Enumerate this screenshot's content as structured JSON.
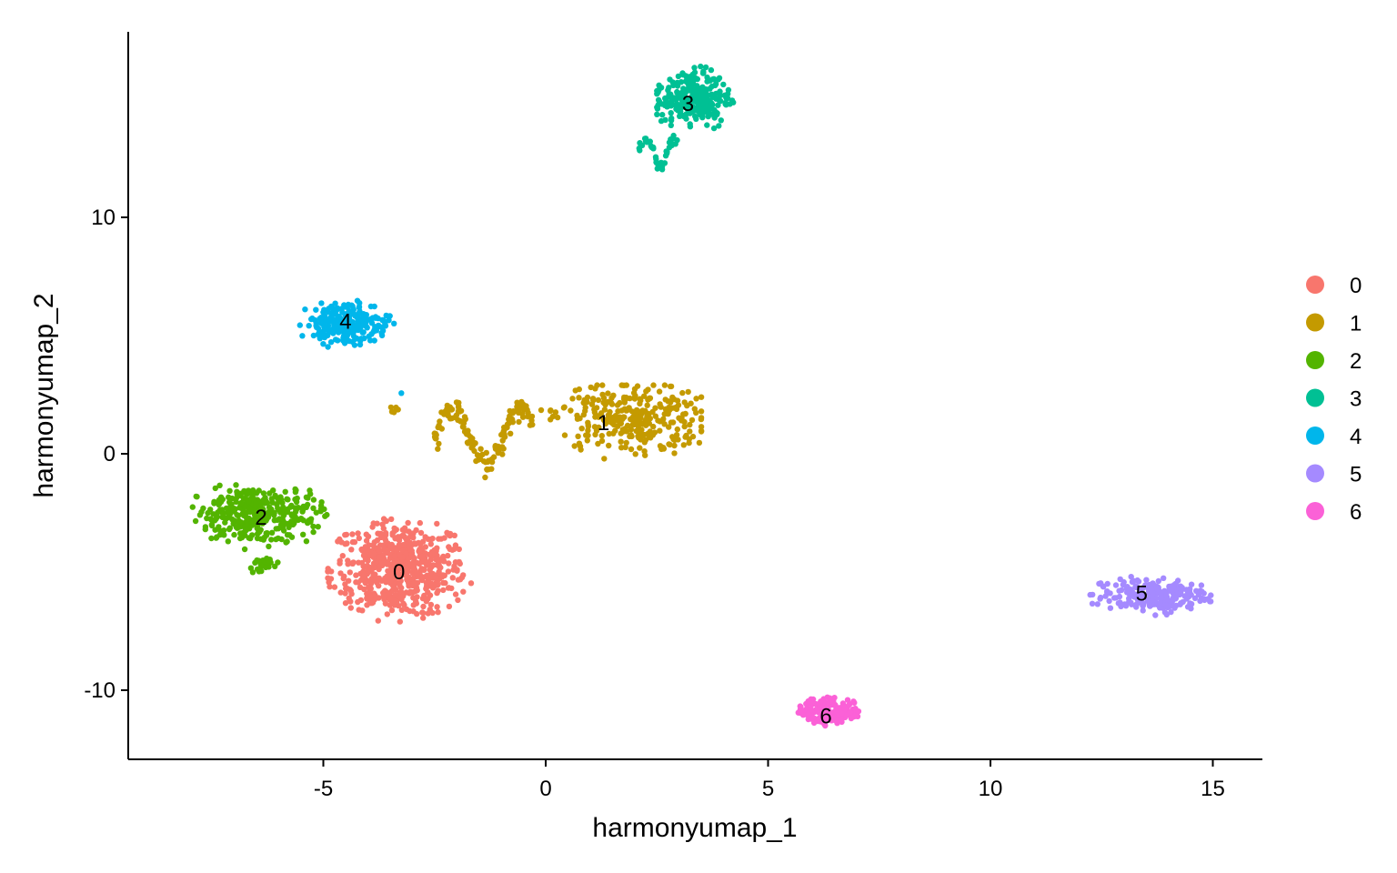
{
  "chart_data": {
    "type": "scatter",
    "title": "",
    "xlabel": "harmonyumap_1",
    "ylabel": "harmonyumap_2",
    "xlim": [
      -9.0,
      16.0
    ],
    "ylim": [
      -13.0,
      18.0
    ],
    "x_ticks": [
      -5,
      0,
      5,
      10,
      15
    ],
    "y_ticks": [
      -10,
      0,
      10
    ],
    "x_tick_labels": [
      "-5",
      "0",
      "5",
      "10",
      "15"
    ],
    "y_tick_labels": [
      "-10",
      "0",
      "10"
    ],
    "grid": false,
    "legend_position": "right",
    "legend": [
      "0",
      "1",
      "2",
      "3",
      "4",
      "5",
      "6"
    ],
    "colors": [
      "#F8766D",
      "#C49A00",
      "#53B400",
      "#00C094",
      "#00B6EB",
      "#A58AFF",
      "#FB61D7"
    ],
    "cluster_labels": [
      {
        "text": "0",
        "x": -3.3,
        "y": -5.0
      },
      {
        "text": "1",
        "x": 1.3,
        "y": 1.3
      },
      {
        "text": "2",
        "x": -6.4,
        "y": -2.7
      },
      {
        "text": "3",
        "x": 3.2,
        "y": 14.8
      },
      {
        "text": "4",
        "x": -4.5,
        "y": 5.6
      },
      {
        "text": "5",
        "x": 13.4,
        "y": -5.9
      },
      {
        "text": "6",
        "x": 6.3,
        "y": -11.1
      }
    ],
    "series": [
      {
        "name": "0",
        "shape": "blob",
        "x": [
          -4.9,
          -1.5
        ],
        "y": [
          -7.1,
          -2.6
        ],
        "cx": -3.3,
        "cy": -4.9,
        "n": 600
      },
      {
        "name": "1",
        "shape": "blob",
        "x": [
          -0.6,
          3.5
        ],
        "y": [
          -0.7,
          2.9
        ],
        "cx": 1.9,
        "cy": 1.5,
        "n": 300
      },
      {
        "name": "1",
        "shape": "band",
        "x": [
          -2.5,
          -0.3
        ],
        "y": [
          -1.0,
          2.4
        ],
        "n": 140
      },
      {
        "name": "1",
        "shape": "blob",
        "x": [
          -3.5,
          -3.3
        ],
        "y": [
          1.7,
          2.0
        ],
        "cx": -3.4,
        "cy": 1.9,
        "n": 6
      },
      {
        "name": "2",
        "shape": "blob",
        "x": [
          -8.3,
          -4.9
        ],
        "y": [
          -4.3,
          -1.3
        ],
        "cx": -6.5,
        "cy": -2.6,
        "n": 330
      },
      {
        "name": "2",
        "shape": "blob",
        "x": [
          -6.8,
          -5.8
        ],
        "y": [
          -5.2,
          -4.4
        ],
        "cx": -6.4,
        "cy": -4.7,
        "n": 25
      },
      {
        "name": "3",
        "shape": "blob",
        "x": [
          2.5,
          4.4
        ],
        "y": [
          13.5,
          16.4
        ],
        "cx": 3.3,
        "cy": 15.0,
        "n": 260
      },
      {
        "name": "3",
        "shape": "band",
        "x": [
          2.1,
          3.0
        ],
        "y": [
          11.9,
          13.6
        ],
        "n": 40
      },
      {
        "name": "4",
        "shape": "blob",
        "x": [
          -5.6,
          -3.3
        ],
        "y": [
          4.5,
          6.6
        ],
        "cx": -4.5,
        "cy": 5.5,
        "n": 220
      },
      {
        "name": "4",
        "shape": "blob",
        "x": [
          -3.3,
          -3.1
        ],
        "y": [
          2.5,
          2.7
        ],
        "cx": -3.2,
        "cy": 2.6,
        "n": 1
      },
      {
        "name": "5",
        "shape": "blob",
        "x": [
          12.1,
          15.0
        ],
        "y": [
          -6.9,
          -5.2
        ],
        "cx": 13.6,
        "cy": -6.0,
        "n": 220
      },
      {
        "name": "6",
        "shape": "blob",
        "x": [
          5.6,
          7.2
        ],
        "y": [
          -11.6,
          -10.3
        ],
        "cx": 6.4,
        "cy": -10.9,
        "n": 180
      }
    ]
  }
}
